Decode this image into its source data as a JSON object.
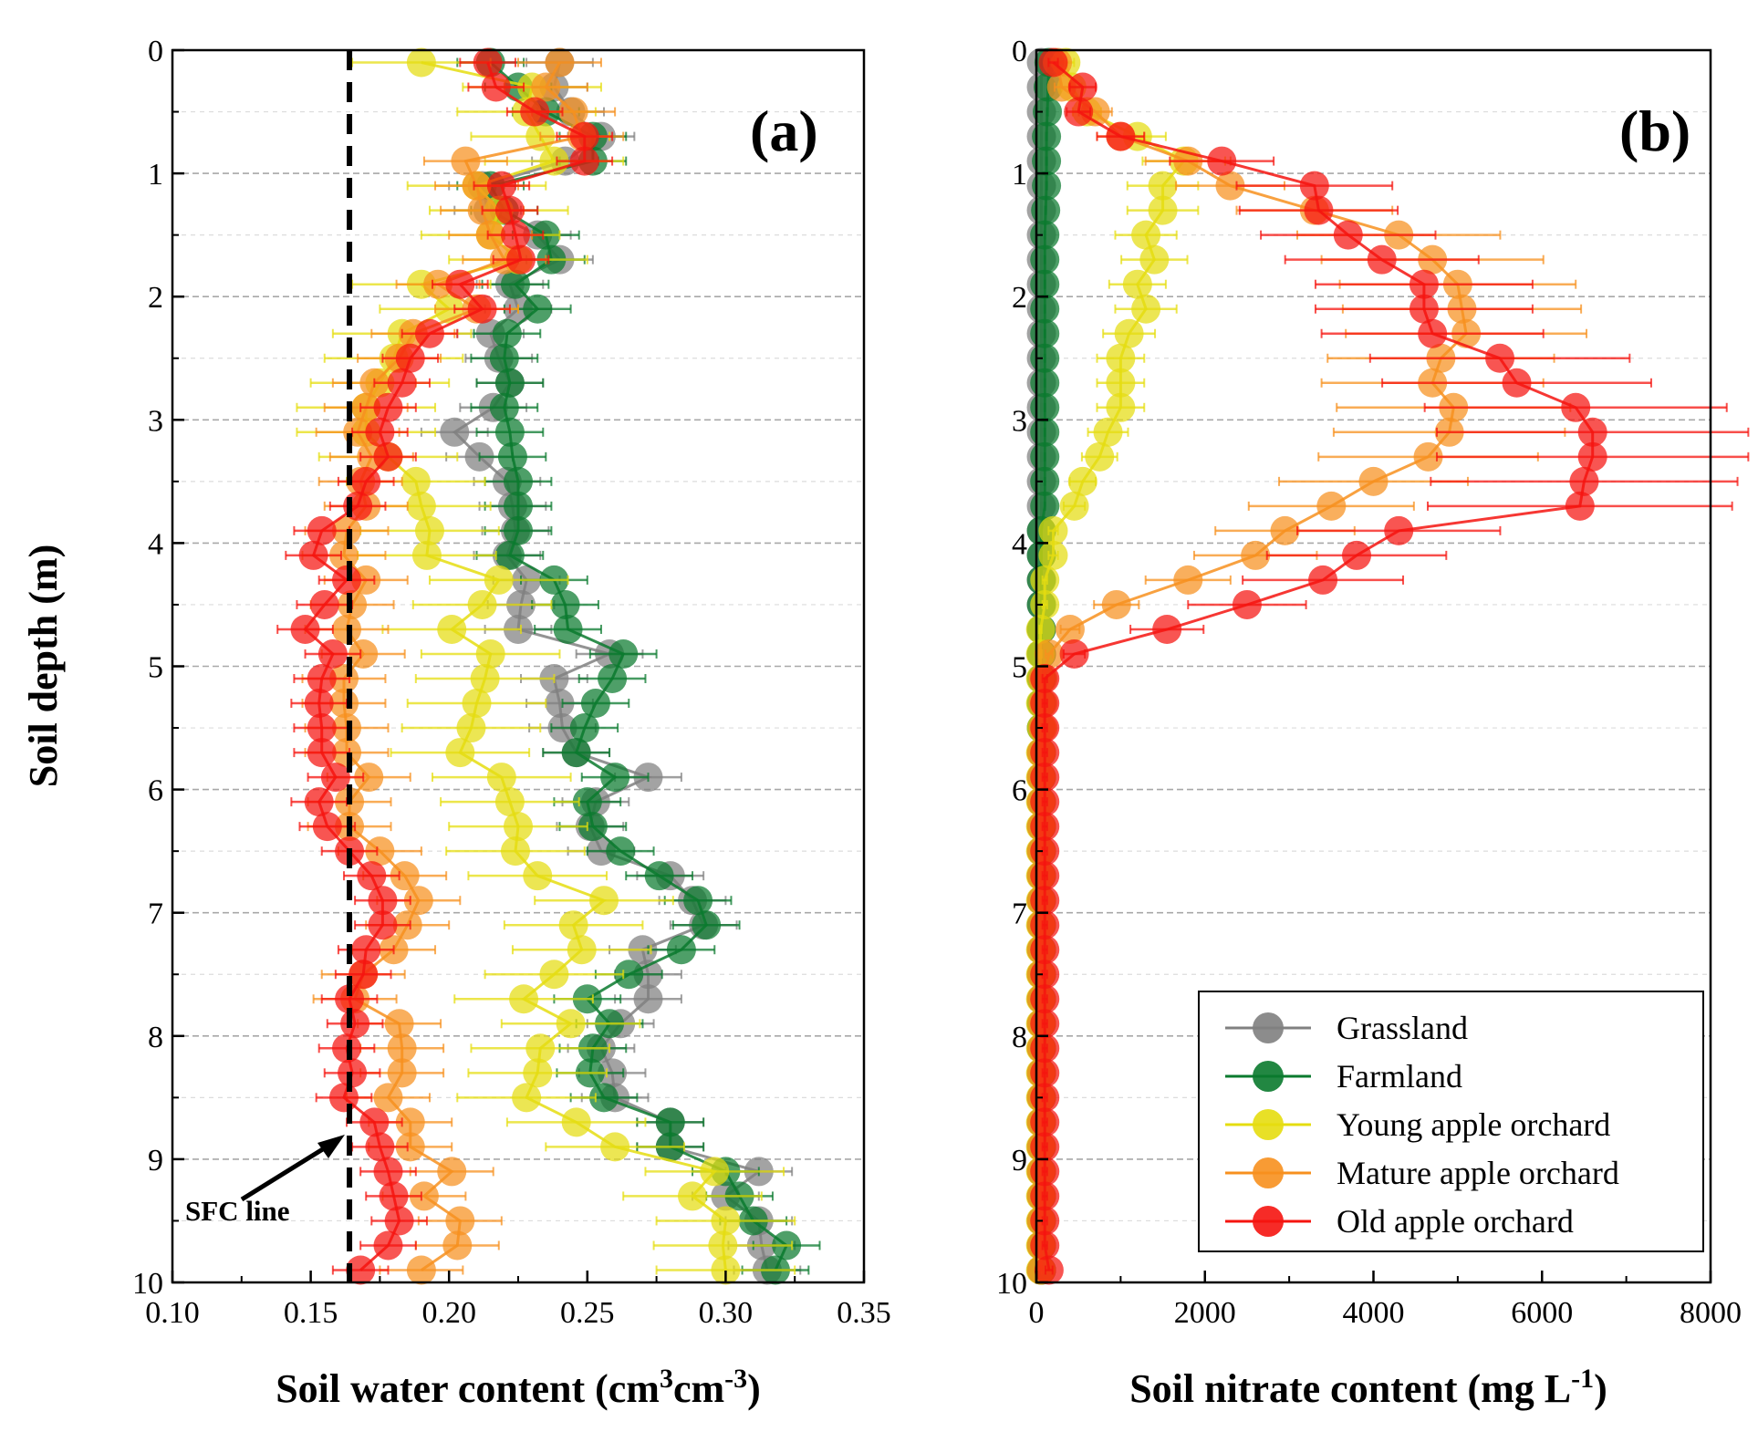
{
  "chart_data": [
    {
      "type": "scatter",
      "panel": "a",
      "panel_label": "(a)",
      "ylabel": "Soil depth (m)",
      "xlabel_main": "Soil water content  (cm",
      "xlabel_sup1": "3",
      "xlabel_mid": "cm",
      "xlabel_sup2": "-3",
      "xlabel_end": ")",
      "xlim": [
        0.1,
        0.35
      ],
      "ylim": [
        0,
        10
      ],
      "x_ticks": [
        "0.10",
        "0.15",
        "0.20",
        "0.25",
        "0.30",
        "0.35"
      ],
      "y_ticks": [
        "0",
        "1",
        "2",
        "3",
        "4",
        "5",
        "6",
        "7",
        "8",
        "9",
        "10"
      ],
      "grid": "dashed horizontal at each meter",
      "reference_line": {
        "label": "SFC line",
        "x": 0.164
      },
      "depths": [
        0.1,
        0.3,
        0.5,
        0.7,
        0.9,
        1.1,
        1.3,
        1.5,
        1.7,
        1.9,
        2.1,
        2.3,
        2.5,
        2.7,
        2.9,
        3.1,
        3.3,
        3.5,
        3.7,
        3.9,
        4.1,
        4.3,
        4.5,
        4.7,
        4.9,
        5.1,
        5.3,
        5.5,
        5.7,
        5.9,
        6.1,
        6.3,
        6.5,
        6.7,
        6.9,
        7.1,
        7.3,
        7.5,
        7.7,
        7.9,
        8.1,
        8.3,
        8.5,
        8.7,
        8.9,
        9.1,
        9.3,
        9.5,
        9.7,
        9.9
      ],
      "series": [
        {
          "name": "Grassland",
          "color": "#808080",
          "err": 0.012,
          "values": [
            0.24,
            0.238,
            0.244,
            0.255,
            0.242,
            0.212,
            0.214,
            0.232,
            0.24,
            0.222,
            0.225,
            0.215,
            0.218,
            0.222,
            0.216,
            0.202,
            0.211,
            0.221,
            0.223,
            0.224,
            0.221,
            0.228,
            0.226,
            0.225,
            0.258,
            0.238,
            0.24,
            0.241,
            0.246,
            0.272,
            0.253,
            0.251,
            0.255,
            0.28,
            0.288,
            0.292,
            0.27,
            0.272,
            0.272,
            0.262,
            0.255,
            0.259,
            0.26,
            0.28,
            0.28,
            0.312,
            0.3,
            0.312,
            0.313,
            0.315
          ]
        },
        {
          "name": "Farmland",
          "color": "#0a7a2e",
          "err": 0.012,
          "values": [
            0.215,
            0.225,
            0.235,
            0.252,
            0.252,
            0.215,
            0.22,
            0.235,
            0.237,
            0.224,
            0.232,
            0.221,
            0.22,
            0.222,
            0.22,
            0.222,
            0.223,
            0.225,
            0.225,
            0.225,
            0.222,
            0.238,
            0.242,
            0.243,
            0.263,
            0.259,
            0.253,
            0.249,
            0.246,
            0.26,
            0.25,
            0.252,
            0.262,
            0.276,
            0.29,
            0.293,
            0.284,
            0.265,
            0.25,
            0.258,
            0.252,
            0.251,
            0.256,
            0.28,
            0.28,
            0.3,
            0.305,
            0.31,
            0.322,
            0.318
          ]
        },
        {
          "name": "Young apple orchard",
          "color": "#e5dd10",
          "err": 0.025,
          "values": [
            0.19,
            0.23,
            0.228,
            0.233,
            0.238,
            0.21,
            0.218,
            0.215,
            0.225,
            0.19,
            0.2,
            0.183,
            0.18,
            0.175,
            0.17,
            0.17,
            0.178,
            0.188,
            0.19,
            0.193,
            0.192,
            0.218,
            0.212,
            0.201,
            0.215,
            0.213,
            0.21,
            0.208,
            0.204,
            0.219,
            0.222,
            0.225,
            0.224,
            0.232,
            0.256,
            0.245,
            0.248,
            0.238,
            0.227,
            0.244,
            0.233,
            0.232,
            0.228,
            0.246,
            0.26,
            0.296,
            0.288,
            0.3,
            0.299,
            0.3
          ]
        },
        {
          "name": "Mature apple orchard",
          "color": "#f7901e",
          "err": 0.015,
          "values": [
            0.24,
            0.235,
            0.245,
            0.248,
            0.206,
            0.21,
            0.212,
            0.215,
            0.22,
            0.196,
            0.21,
            0.187,
            0.182,
            0.173,
            0.17,
            0.167,
            0.172,
            0.168,
            0.17,
            0.163,
            0.162,
            0.17,
            0.165,
            0.163,
            0.169,
            0.162,
            0.162,
            0.163,
            0.163,
            0.171,
            0.164,
            0.164,
            0.175,
            0.184,
            0.189,
            0.185,
            0.18,
            0.169,
            0.166,
            0.182,
            0.183,
            0.183,
            0.178,
            0.186,
            0.186,
            0.201,
            0.191,
            0.204,
            0.203,
            0.19
          ]
        },
        {
          "name": "Old apple orchard",
          "color": "#f5140f",
          "err": 0.01,
          "values": [
            0.214,
            0.217,
            0.231,
            0.249,
            0.249,
            0.219,
            0.222,
            0.224,
            0.226,
            0.204,
            0.212,
            0.193,
            0.186,
            0.183,
            0.178,
            0.175,
            0.178,
            0.17,
            0.167,
            0.154,
            0.151,
            0.163,
            0.155,
            0.148,
            0.158,
            0.154,
            0.153,
            0.154,
            0.154,
            0.159,
            0.153,
            0.156,
            0.164,
            0.172,
            0.176,
            0.176,
            0.17,
            0.169,
            0.164,
            0.166,
            0.163,
            0.165,
            0.162,
            0.173,
            0.175,
            0.178,
            0.18,
            0.182,
            0.178,
            0.168
          ]
        }
      ]
    },
    {
      "type": "scatter",
      "panel": "b",
      "panel_label": "(b)",
      "xlabel_main": "Soil nitrate content  (mg L",
      "xlabel_sup1": "-1",
      "xlabel_end": ")",
      "xlim": [
        0,
        8000
      ],
      "ylim": [
        0,
        10
      ],
      "x_ticks": [
        "0",
        "2000",
        "4000",
        "6000",
        "8000"
      ],
      "y_ticks": [
        "0",
        "1",
        "2",
        "3",
        "4",
        "5",
        "6",
        "7",
        "8",
        "9",
        "10"
      ],
      "grid": "dashed horizontal at each meter",
      "legend_position": "bottom-right",
      "series": [
        {
          "name": "Grassland",
          "color": "#808080",
          "err_frac": 0.05,
          "values": [
            60,
            60,
            60,
            60,
            60,
            60,
            60,
            60,
            60,
            60,
            60,
            60,
            60,
            60,
            60,
            60,
            60,
            60,
            60,
            60,
            60,
            60,
            60,
            60,
            60,
            60,
            60,
            60,
            60,
            60,
            60,
            60,
            60,
            60,
            60,
            60,
            60,
            60,
            60,
            60,
            60,
            60,
            60,
            60,
            60,
            60,
            60,
            60,
            60,
            60
          ]
        },
        {
          "name": "Farmland",
          "color": "#0a7a2e",
          "err_frac": 0.05,
          "values": [
            150,
            140,
            130,
            120,
            120,
            120,
            110,
            100,
            100,
            100,
            100,
            100,
            100,
            100,
            100,
            100,
            100,
            100,
            100,
            60,
            60,
            60,
            60,
            60,
            60,
            60,
            60,
            60,
            60,
            60,
            60,
            60,
            60,
            60,
            60,
            60,
            60,
            60,
            60,
            60,
            60,
            60,
            60,
            60,
            60,
            60,
            60,
            60,
            60,
            60
          ]
        },
        {
          "name": "Young apple orchard",
          "color": "#e5dd10",
          "err_frac": 0.28,
          "values": [
            350,
            420,
            600,
            1200,
            1750,
            1500,
            1500,
            1300,
            1400,
            1200,
            1300,
            1100,
            1000,
            1000,
            1000,
            850,
            750,
            550,
            450,
            200,
            200,
            100,
            100,
            50,
            50,
            50,
            50,
            60,
            50,
            50,
            50,
            50,
            50,
            50,
            50,
            50,
            50,
            50,
            50,
            50,
            50,
            50,
            50,
            50,
            50,
            50,
            50,
            50,
            50,
            50
          ]
        },
        {
          "name": "Mature apple orchard",
          "color": "#f7901e",
          "err_frac": 0.28,
          "values": [
            250,
            300,
            700,
            1000,
            1800,
            2300,
            3300,
            4300,
            4700,
            5000,
            5050,
            5100,
            4800,
            4700,
            4950,
            4900,
            4650,
            4000,
            3500,
            2950,
            2600,
            1800,
            950,
            400,
            150,
            80,
            80,
            80,
            60,
            60,
            60,
            60,
            60,
            60,
            60,
            60,
            60,
            60,
            60,
            60,
            60,
            60,
            60,
            60,
            60,
            60,
            60,
            60,
            60,
            60
          ]
        },
        {
          "name": "Old apple orchard",
          "color": "#f5140f",
          "err_frac": 0.28,
          "values": [
            200,
            550,
            500,
            1000,
            2200,
            3300,
            3350,
            3700,
            4100,
            4600,
            4600,
            4700,
            5500,
            5700,
            6400,
            6600,
            6600,
            6500,
            6450,
            4300,
            3800,
            3400,
            2500,
            1550,
            450,
            100,
            100,
            100,
            100,
            100,
            100,
            100,
            100,
            100,
            100,
            100,
            100,
            100,
            100,
            100,
            100,
            100,
            100,
            100,
            100,
            100,
            100,
            100,
            100,
            150
          ]
        }
      ]
    }
  ]
}
